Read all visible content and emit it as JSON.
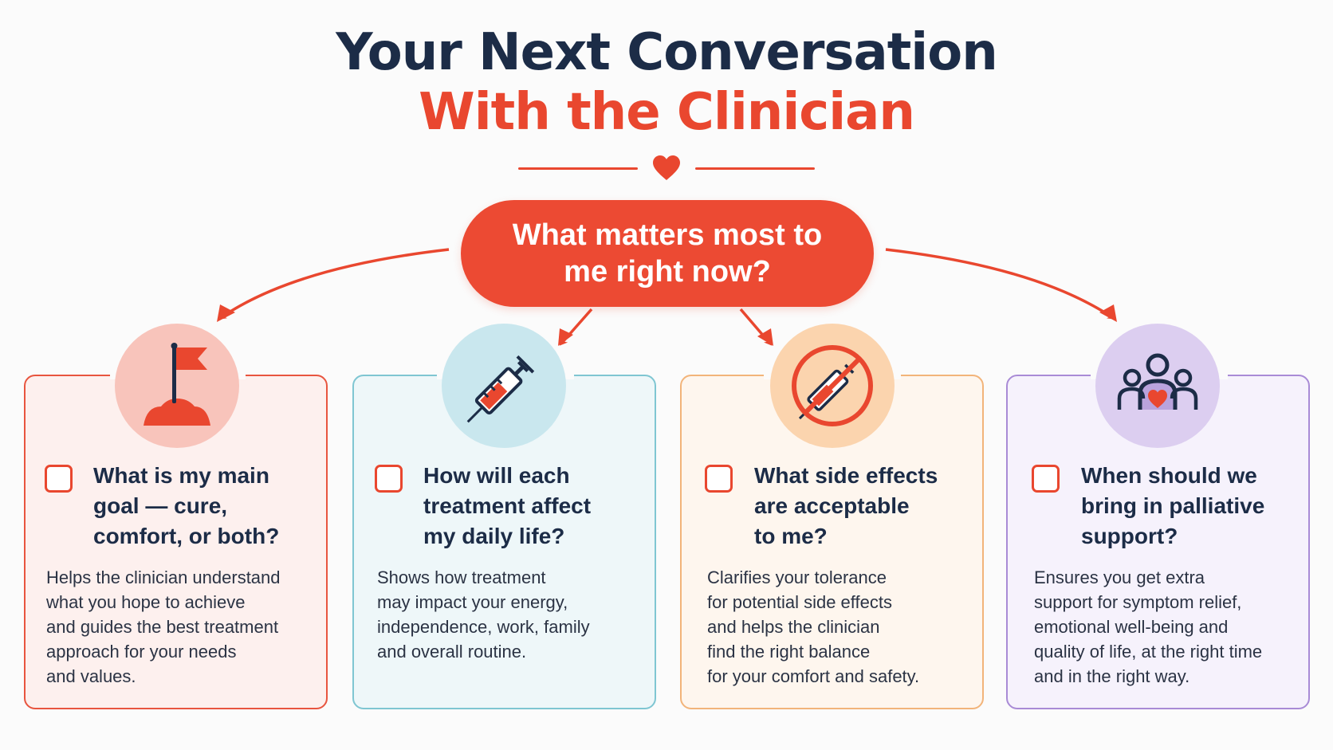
{
  "header": {
    "title_line_1": "Your Next Conversation",
    "title_line_2": "With the Clinician"
  },
  "central_question": "What matters most to me right now?",
  "colors": {
    "navy": "#1c2c47",
    "accent_red": "#e9472f",
    "card_1_border": "#e8553f",
    "card_2_border": "#7fc6d2",
    "card_3_border": "#f2b47a",
    "card_4_border": "#a98bd6"
  },
  "cards": [
    {
      "icon": "flag-icon",
      "question": "What is my main\ngoal — cure,\ncomfort, or both?",
      "description": "Helps the clinician understand\nwhat you hope to achieve\nand guides the best treatment\napproach for your needs\nand values."
    },
    {
      "icon": "syringe-icon",
      "question": "How will each\ntreatment affect\nmy daily life?",
      "description": "Shows how treatment\nmay impact your energy,\nindependence, work, family\nand overall routine."
    },
    {
      "icon": "no-syringe-icon",
      "question": "What side effects\nare acceptable\nto me?",
      "description": "Clarifies your tolerance\nfor potential side effects\nand helps the clinician\nfind the right balance\nfor your comfort and safety."
    },
    {
      "icon": "family-support-icon",
      "question": "When should we\nbring in palliative\nsupport?",
      "description": "Ensures you get extra\nsupport for symptom relief,\nemotional well-being and\nquality of life, at the right time\nand in the right way."
    }
  ]
}
